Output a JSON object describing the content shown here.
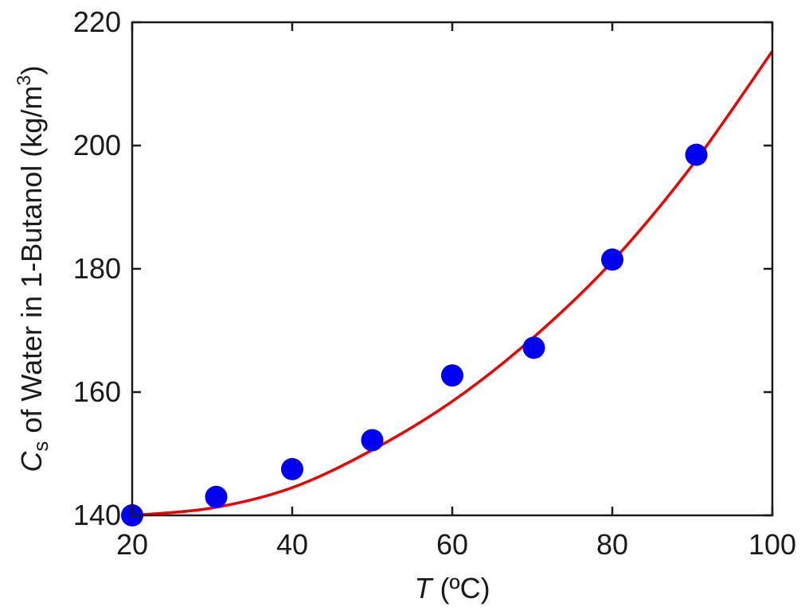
{
  "chart_data": {
    "type": "scatter",
    "xlabel": {
      "var": "T",
      "unit": " (ºC)"
    },
    "ylabel": {
      "var": "C",
      "sub": "s",
      "text": " of Water in 1-Butanol (kg/m",
      "sup": "3",
      "end": ")"
    },
    "xlim": [
      20,
      100
    ],
    "ylim": [
      140,
      220
    ],
    "xticks": [
      20,
      40,
      60,
      80,
      100
    ],
    "yticks": [
      140,
      160,
      180,
      200,
      220
    ],
    "grid": false,
    "series": [
      {
        "kind": "points",
        "color": "#0000ee",
        "x": [
          20,
          30.5,
          40,
          50,
          60,
          70.2,
          80,
          90.5
        ],
        "y": [
          140,
          143,
          147.5,
          152.2,
          162.7,
          167.2,
          181.5,
          198.5
        ]
      },
      {
        "kind": "fit-curve",
        "color": "#ee0000",
        "x": [
          20,
          30,
          40,
          50,
          60,
          70,
          80,
          90,
          100
        ],
        "y": [
          140,
          141.2,
          144.5,
          150.6,
          158.5,
          168.7,
          181.2,
          196.8,
          215.3
        ]
      }
    ]
  }
}
